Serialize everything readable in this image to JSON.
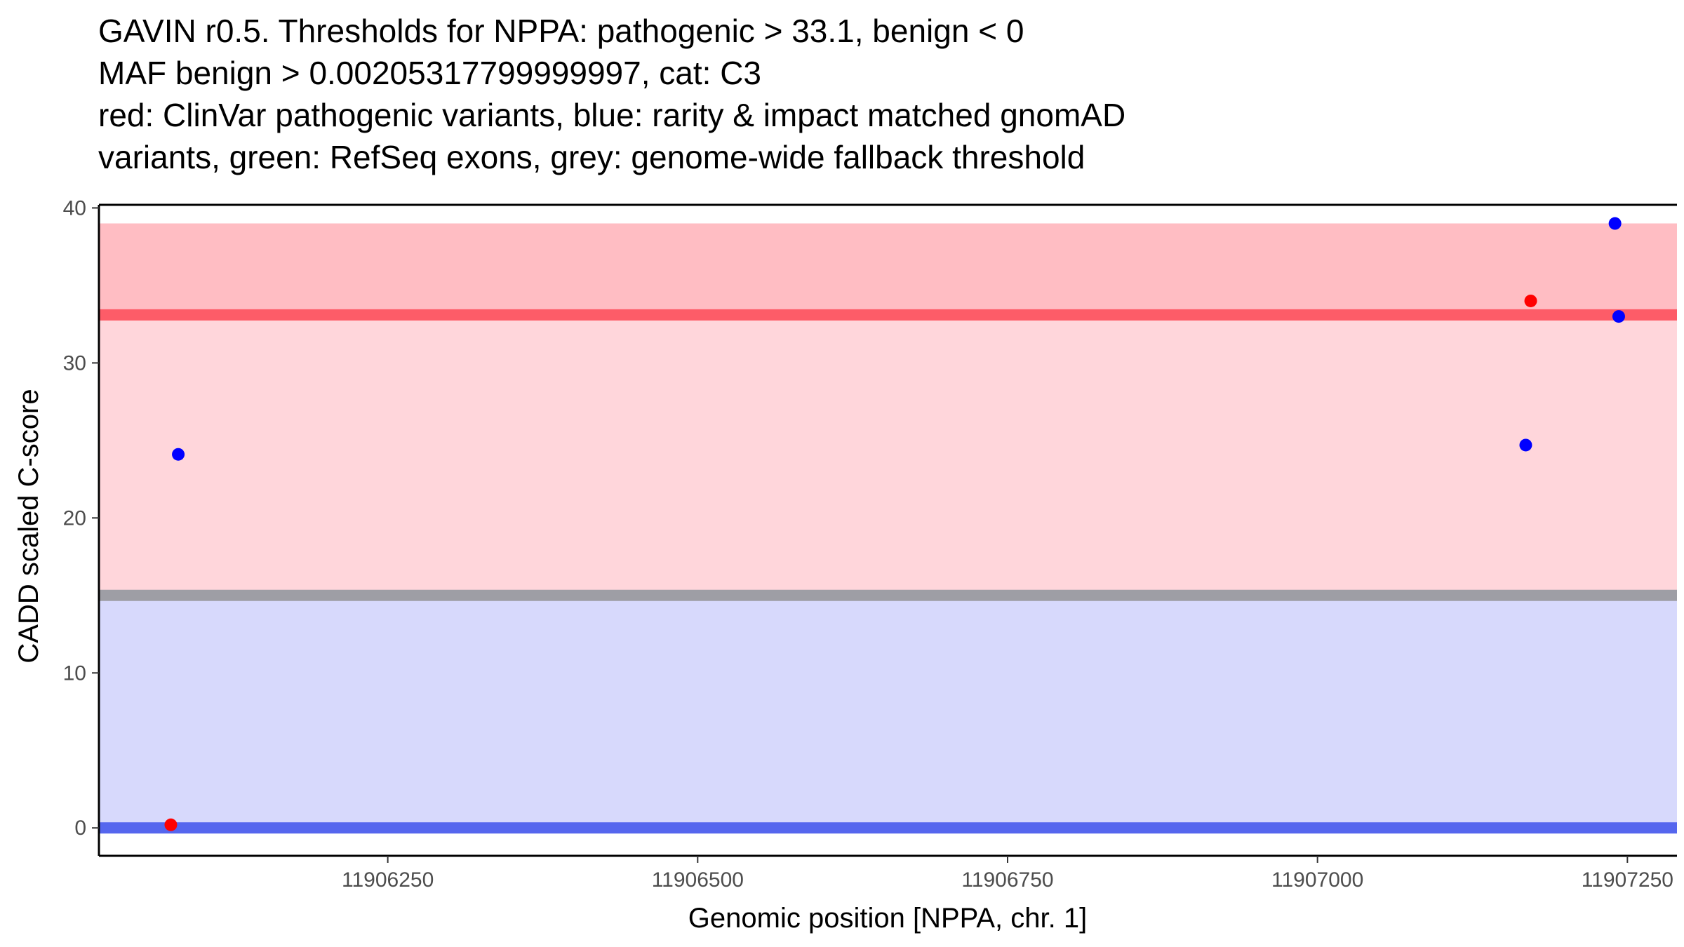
{
  "chart_data": {
    "type": "scatter",
    "title_lines": [
      "GAVIN r0.5. Thresholds for NPPA: pathogenic > 33.1, benign < 0",
      "MAF benign > 0.00205317799999997, cat: C3",
      "red: ClinVar pathogenic variants, blue: rarity & impact matched gnomAD",
      "variants, green: RefSeq exons, grey: genome-wide fallback threshold"
    ],
    "xlabel": "Genomic position [NPPA, chr. 1]",
    "ylabel": "CADD scaled C-score",
    "xlim": [
      11906017,
      11907290
    ],
    "ylim": [
      -1.8,
      40.2
    ],
    "x_ticks": [
      11906250,
      11906500,
      11906750,
      11907000,
      11907250
    ],
    "y_ticks": [
      0,
      10,
      20,
      30,
      40
    ],
    "grid": false,
    "bands": [
      {
        "name": "pathogenic-region",
        "y_from": 15.0,
        "y_to": 39.0,
        "color": "#ffd6db"
      },
      {
        "name": "benign-region",
        "y_from": 0.0,
        "y_to": 15.0,
        "color": "#d7d9fc"
      },
      {
        "name": "high-score-region",
        "y_from": 33.1,
        "y_to": 39.0,
        "color": "#ffbdc3"
      }
    ],
    "threshold_lines": [
      {
        "name": "benign-threshold",
        "y": 0,
        "color": "#5566ee"
      },
      {
        "name": "fallback-threshold",
        "y": 15.0,
        "color": "#9e9ea5"
      },
      {
        "name": "pathogenic-threshold",
        "y": 33.1,
        "color": "#fd5c68"
      }
    ],
    "series": [
      {
        "color": "#ff0000",
        "points": [
          {
            "x": 11906075,
            "y": 0.2
          },
          {
            "x": 11907172,
            "y": 34.0
          }
        ]
      },
      {
        "color": "#0000ff",
        "points": [
          {
            "x": 11906081,
            "y": 24.1
          },
          {
            "x": 11907168,
            "y": 24.7
          },
          {
            "x": 11907240,
            "y": 39.0
          },
          {
            "x": 11907243,
            "y": 33.0
          }
        ]
      }
    ]
  }
}
